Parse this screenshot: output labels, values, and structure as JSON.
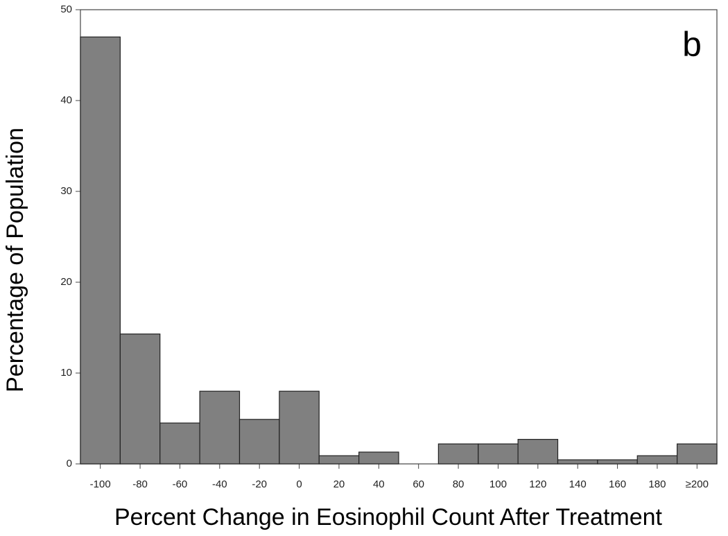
{
  "chart_data": {
    "type": "bar",
    "annotation": "b",
    "x_label": "Percent Change in Eosinophil Count After Treatment",
    "y_label": "Percentage of Population",
    "categories": [
      "-100",
      "-80",
      "-60",
      "-40",
      "-20",
      "0",
      "20",
      "40",
      "60",
      "80",
      "100",
      "120",
      "140",
      "160",
      "180",
      "≥200"
    ],
    "values": [
      47,
      14.3,
      4.5,
      8,
      4.9,
      8,
      0.9,
      1.3,
      0,
      2.2,
      2.2,
      2.7,
      0.45,
      0.45,
      0.9,
      2.2
    ],
    "color": "#808080",
    "ylim": [
      0,
      50
    ],
    "yticks": [
      0,
      10,
      20,
      30,
      40,
      50
    ],
    "grid": false
  }
}
